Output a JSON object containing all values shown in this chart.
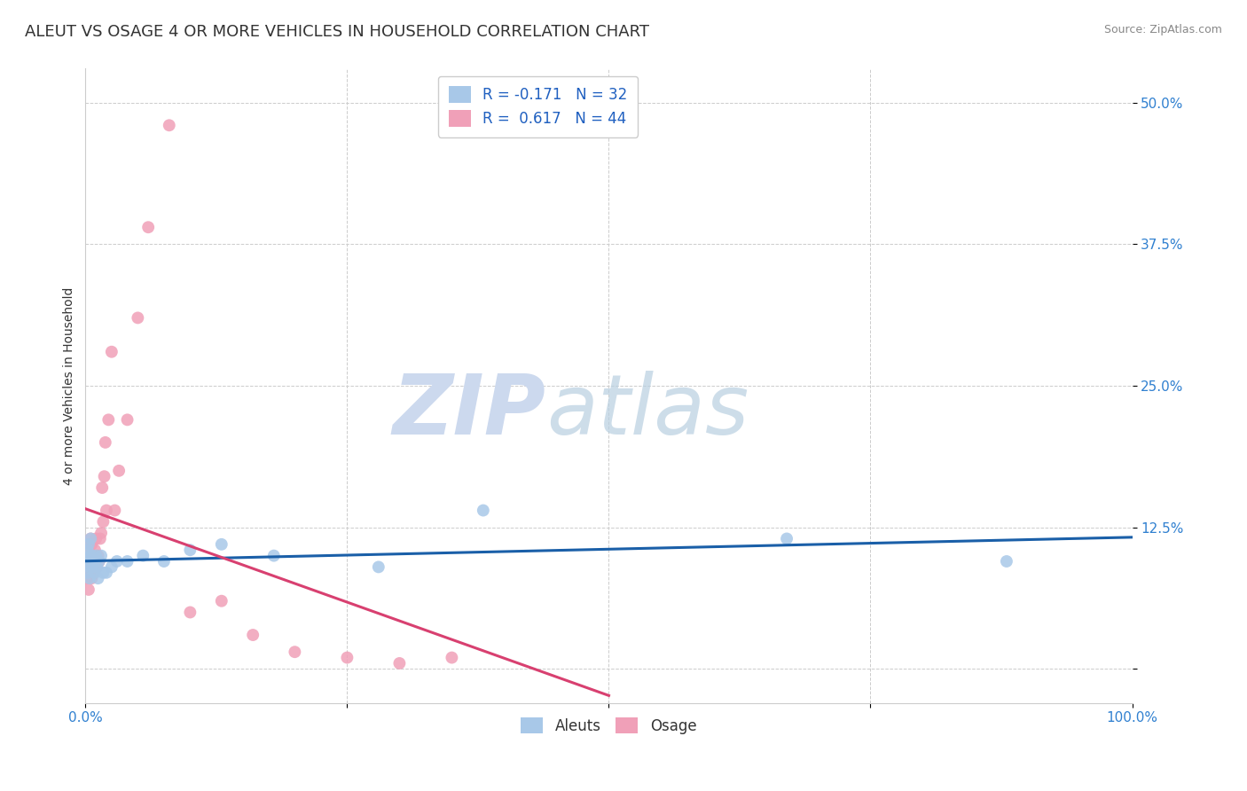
{
  "title": "ALEUT VS OSAGE 4 OR MORE VEHICLES IN HOUSEHOLD CORRELATION CHART",
  "source_text": "Source: ZipAtlas.com",
  "ylabel": "4 or more Vehicles in Household",
  "xlim": [
    0.0,
    1.0
  ],
  "ylim": [
    -0.03,
    0.53
  ],
  "ytick_positions": [
    0.0,
    0.125,
    0.25,
    0.375,
    0.5
  ],
  "yticklabels": [
    "",
    "12.5%",
    "25.0%",
    "37.5%",
    "50.0%"
  ],
  "xtick_positions": [
    0.0,
    0.25,
    0.5,
    0.75,
    1.0
  ],
  "xticklabels": [
    "0.0%",
    "",
    "",
    "",
    "100.0%"
  ],
  "grid_color": "#cccccc",
  "background_color": "#ffffff",
  "aleuts_color": "#a8c8e8",
  "osage_color": "#f0a0b8",
  "aleuts_line_color": "#1a5fa8",
  "osage_line_color": "#d84070",
  "R_aleuts": -0.171,
  "N_aleuts": 32,
  "R_osage": 0.617,
  "N_osage": 44,
  "aleuts_x": [
    0.001,
    0.002,
    0.002,
    0.003,
    0.003,
    0.004,
    0.004,
    0.005,
    0.005,
    0.006,
    0.007,
    0.008,
    0.009,
    0.01,
    0.011,
    0.012,
    0.013,
    0.015,
    0.017,
    0.02,
    0.025,
    0.03,
    0.04,
    0.055,
    0.075,
    0.1,
    0.13,
    0.18,
    0.28,
    0.38,
    0.67,
    0.88
  ],
  "aleuts_y": [
    0.095,
    0.105,
    0.085,
    0.11,
    0.09,
    0.1,
    0.08,
    0.095,
    0.115,
    0.1,
    0.09,
    0.095,
    0.085,
    0.1,
    0.09,
    0.08,
    0.095,
    0.1,
    0.085,
    0.085,
    0.09,
    0.095,
    0.095,
    0.1,
    0.095,
    0.105,
    0.11,
    0.1,
    0.09,
    0.14,
    0.115,
    0.095
  ],
  "osage_x": [
    0.001,
    0.001,
    0.002,
    0.002,
    0.003,
    0.003,
    0.004,
    0.004,
    0.005,
    0.005,
    0.006,
    0.006,
    0.007,
    0.007,
    0.008,
    0.008,
    0.009,
    0.01,
    0.01,
    0.011,
    0.012,
    0.013,
    0.014,
    0.015,
    0.016,
    0.017,
    0.018,
    0.019,
    0.02,
    0.022,
    0.025,
    0.028,
    0.032,
    0.04,
    0.05,
    0.06,
    0.08,
    0.1,
    0.13,
    0.16,
    0.2,
    0.25,
    0.3,
    0.35
  ],
  "osage_y": [
    0.095,
    0.08,
    0.105,
    0.09,
    0.11,
    0.07,
    0.095,
    0.085,
    0.1,
    0.115,
    0.08,
    0.11,
    0.09,
    0.1,
    0.085,
    0.095,
    0.105,
    0.095,
    0.115,
    0.09,
    0.1,
    0.095,
    0.115,
    0.12,
    0.16,
    0.13,
    0.17,
    0.2,
    0.14,
    0.22,
    0.28,
    0.14,
    0.175,
    0.22,
    0.31,
    0.39,
    0.48,
    0.05,
    0.06,
    0.03,
    0.015,
    0.01,
    0.005,
    0.01
  ],
  "title_fontsize": 13,
  "axis_label_fontsize": 10,
  "tick_fontsize": 11,
  "legend_fontsize": 12,
  "source_fontsize": 9
}
